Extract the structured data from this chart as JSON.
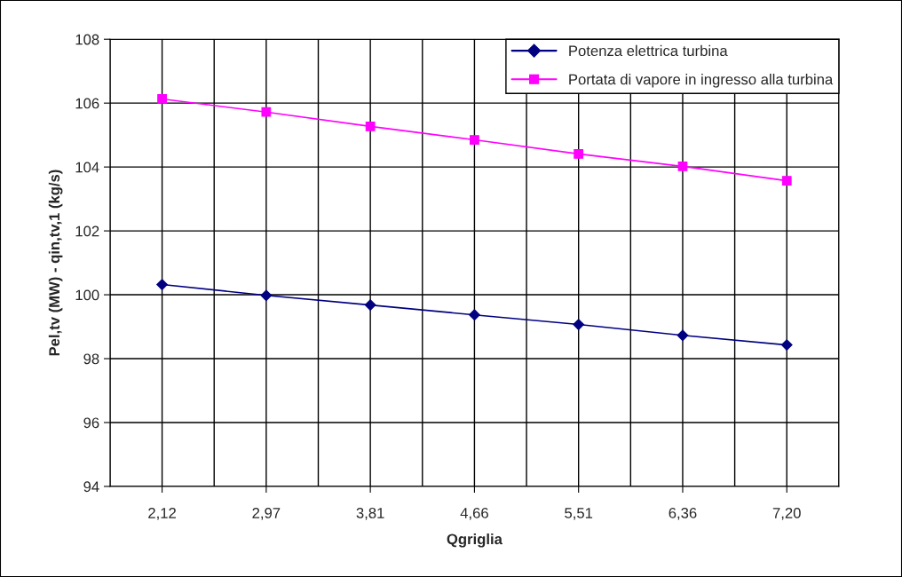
{
  "chart_data": {
    "type": "line",
    "xlabel": "Qgriglia",
    "ylabel": "Pel,tv (MW) - qin,tv,1 (kg/s)",
    "categories": [
      "2,12",
      "2,97",
      "3,81",
      "4,66",
      "5,51",
      "6,36",
      "7,20"
    ],
    "series": [
      {
        "name": "Potenza elettrica turbina",
        "color": "#000080",
        "marker": "diamond",
        "values": [
          100.32,
          99.98,
          99.68,
          99.37,
          99.07,
          98.73,
          98.43
        ]
      },
      {
        "name": "Portata di vapore in ingresso alla turbina",
        "color": "#ff00ff",
        "marker": "square",
        "values": [
          106.13,
          105.72,
          105.27,
          104.85,
          104.41,
          104.02,
          103.57
        ]
      }
    ],
    "ylim": [
      94,
      108
    ],
    "yticks": [
      94,
      96,
      98,
      100,
      102,
      104,
      106,
      108
    ],
    "grid": true,
    "legend": "top right",
    "line_style": "solid"
  }
}
